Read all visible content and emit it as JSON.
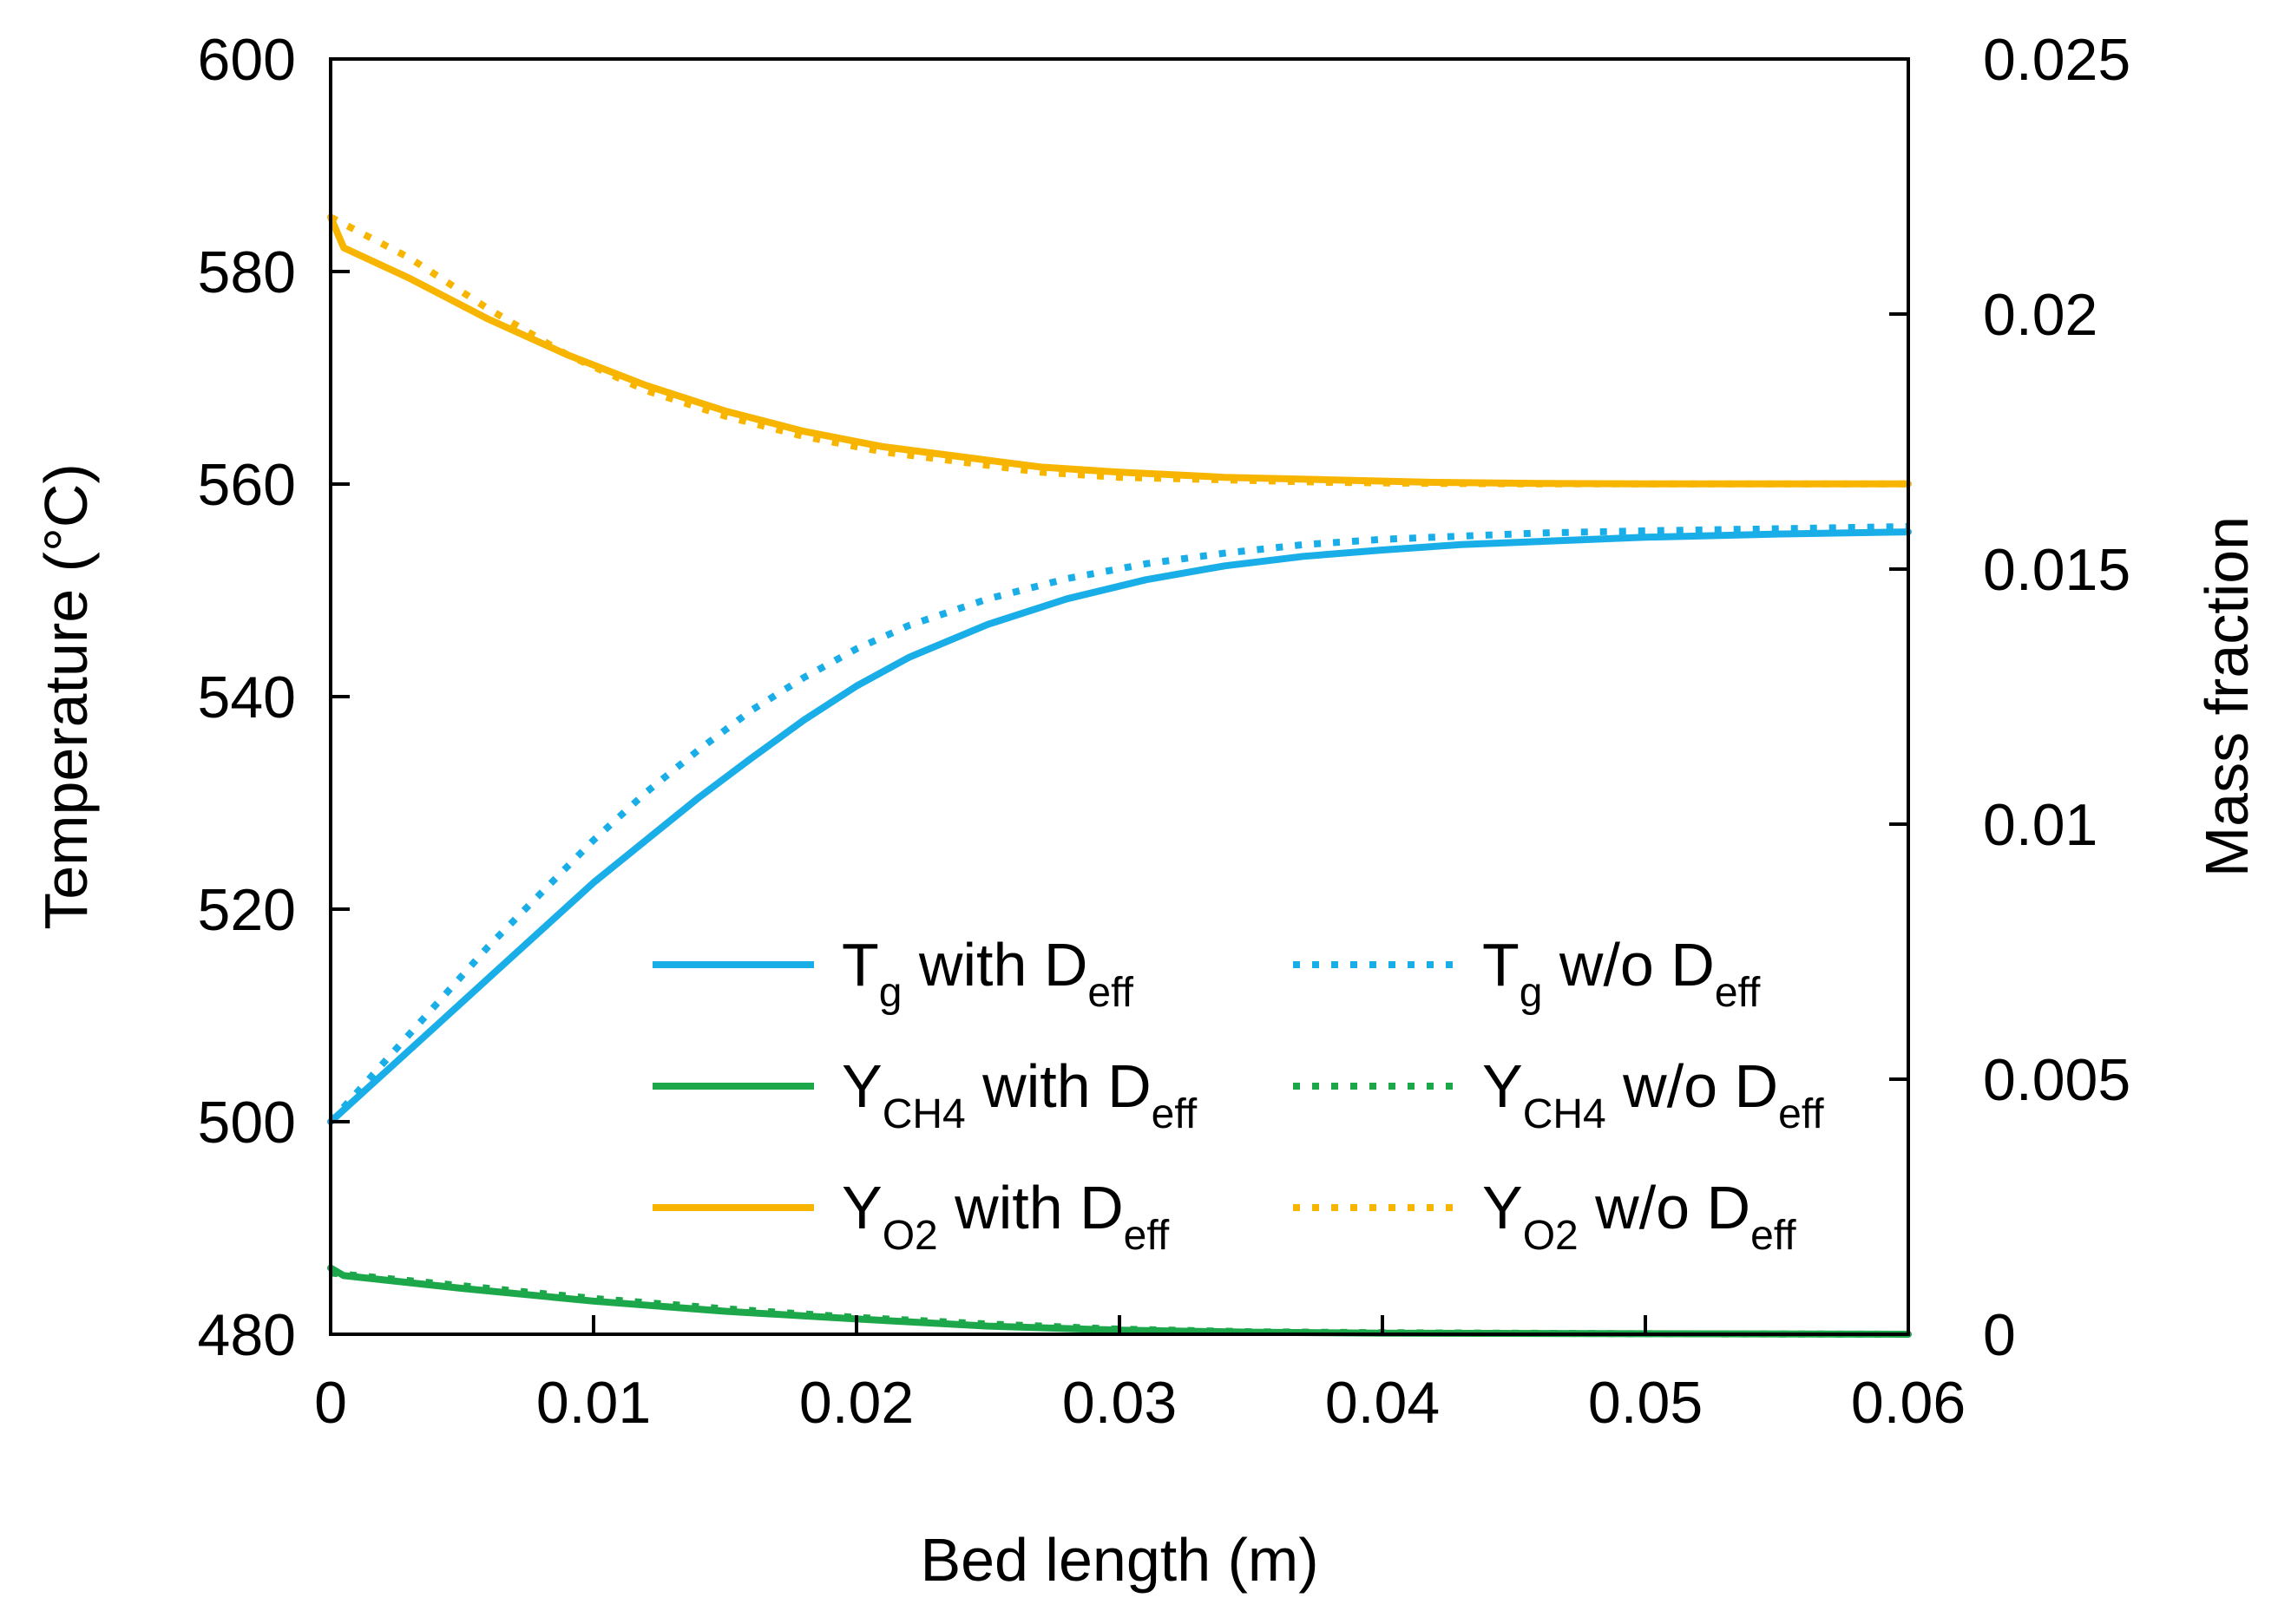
{
  "chart_data": {
    "type": "line",
    "xlabel": "Bed length (m)",
    "ylabel_left": "Temperature (°C)",
    "ylabel_right": "Mass fraction",
    "xlim": [
      0,
      0.06
    ],
    "ylim_left": [
      480,
      600
    ],
    "ylim_right": [
      0,
      0.025
    ],
    "x_ticks": [
      0,
      0.01,
      0.02,
      0.03,
      0.04,
      0.05,
      0.06
    ],
    "x_tick_labels": [
      "0",
      "0.01",
      "0.02",
      "0.03",
      "0.04",
      "0.05",
      "0.06"
    ],
    "y_left_ticks": [
      480,
      500,
      520,
      540,
      560,
      580,
      600
    ],
    "y_left_tick_labels": [
      "480",
      "500",
      "520",
      "540",
      "560",
      "580",
      "600"
    ],
    "y_right_ticks": [
      0,
      0.005,
      0.01,
      0.015,
      0.02,
      0.025
    ],
    "y_right_tick_labels": [
      "0",
      "0.005",
      "0.01",
      "0.015",
      "0.02",
      "0.025"
    ],
    "grid": false,
    "legend_position": "lower-right",
    "colors": {
      "tg": "#1aaee8",
      "ych4": "#1ca84a",
      "yo2": "#f7b500",
      "axis": "#000000"
    },
    "series": [
      {
        "name": "Tg with Deff",
        "legend": {
          "main": "T",
          "sub": "g",
          "rest": " with D",
          "sub2": "eff"
        },
        "axis": "left",
        "style": "solid",
        "color_key": "tg",
        "x": [
          0,
          0.002,
          0.004,
          0.006,
          0.008,
          0.01,
          0.012,
          0.014,
          0.016,
          0.018,
          0.02,
          0.022,
          0.025,
          0.028,
          0.031,
          0.034,
          0.037,
          0.04,
          0.043,
          0.046,
          0.05,
          0.055,
          0.06
        ],
        "y": [
          500,
          504.5,
          509,
          513.5,
          518,
          522.5,
          526.5,
          530.5,
          534.2,
          537.8,
          541,
          543.7,
          546.8,
          549.2,
          551,
          552.3,
          553.2,
          553.8,
          554.3,
          554.6,
          555,
          555.3,
          555.5
        ]
      },
      {
        "name": "Tg w/o Deff",
        "legend": {
          "main": "T",
          "sub": "g",
          "rest": " w/o D",
          "sub2": "eff"
        },
        "axis": "left",
        "style": "dotted",
        "color_key": "tg",
        "x": [
          0,
          0.002,
          0.004,
          0.006,
          0.008,
          0.01,
          0.012,
          0.014,
          0.016,
          0.018,
          0.02,
          0.022,
          0.025,
          0.028,
          0.031,
          0.034,
          0.037,
          0.04,
          0.043,
          0.046,
          0.05,
          0.055,
          0.06
        ],
        "y": [
          500,
          505.5,
          511,
          516.5,
          521.5,
          526.5,
          531,
          535,
          538.7,
          541.8,
          544.5,
          546.7,
          549.2,
          551.1,
          552.5,
          553.5,
          554.3,
          554.8,
          555.1,
          555.4,
          555.6,
          555.8,
          556
        ]
      },
      {
        "name": "YCH4 with Deff",
        "legend": {
          "main": "Y",
          "sub": "CH4",
          "rest": " with D",
          "sub2": "eff"
        },
        "axis": "right",
        "style": "solid",
        "color_key": "ych4",
        "x": [
          0,
          0.0005,
          0.005,
          0.01,
          0.015,
          0.02,
          0.025,
          0.03,
          0.035,
          0.04,
          0.05,
          0.06
        ],
        "y": [
          0.0013,
          0.00115,
          0.0009,
          0.00065,
          0.00045,
          0.0003,
          0.00016,
          8e-05,
          4e-05,
          2e-05,
          1e-05,
          0
        ]
      },
      {
        "name": "YCH4 w/o Deff",
        "legend": {
          "main": "Y",
          "sub": "CH4",
          "rest": "  w/o D",
          "sub2": "eff"
        },
        "axis": "right",
        "style": "dotted",
        "color_key": "ych4",
        "x": [
          0,
          0.005,
          0.01,
          0.015,
          0.02,
          0.025,
          0.03,
          0.035,
          0.04,
          0.05,
          0.06
        ],
        "y": [
          0.0012,
          0.00095,
          0.0007,
          0.0005,
          0.00033,
          0.0002,
          0.0001,
          5e-05,
          3e-05,
          1e-05,
          0
        ]
      },
      {
        "name": "YO2 with Deff",
        "legend": {
          "main": "Y",
          "sub": "O2",
          "rest": " with D",
          "sub2": "eff"
        },
        "axis": "right",
        "style": "solid",
        "color_key": "yo2",
        "x": [
          0,
          0.0005,
          0.003,
          0.006,
          0.009,
          0.012,
          0.015,
          0.018,
          0.021,
          0.024,
          0.027,
          0.03,
          0.034,
          0.038,
          0.042,
          0.046,
          0.05,
          0.055,
          0.06
        ],
        "y": [
          0.0219,
          0.0213,
          0.0207,
          0.0199,
          0.0192,
          0.0186,
          0.0181,
          0.0177,
          0.0174,
          0.0172,
          0.017,
          0.0169,
          0.0168,
          0.01675,
          0.0167,
          0.01668,
          0.01667,
          0.01667,
          0.01667
        ]
      },
      {
        "name": "YO2 w/o Deff",
        "legend": {
          "main": "Y",
          "sub": "O2",
          "rest": " w/o D",
          "sub2": "eff"
        },
        "axis": "right",
        "style": "dotted",
        "color_key": "yo2",
        "x": [
          0,
          0.003,
          0.006,
          0.009,
          0.012,
          0.015,
          0.018,
          0.021,
          0.024,
          0.027,
          0.03,
          0.034,
          0.038,
          0.042,
          0.046,
          0.05,
          0.055,
          0.06
        ],
        "y": [
          0.0219,
          0.0211,
          0.0201,
          0.0192,
          0.0185,
          0.018,
          0.0176,
          0.0173,
          0.0171,
          0.0169,
          0.0168,
          0.01675,
          0.0167,
          0.01668,
          0.01667,
          0.01667,
          0.01667,
          0.01667
        ]
      }
    ]
  }
}
